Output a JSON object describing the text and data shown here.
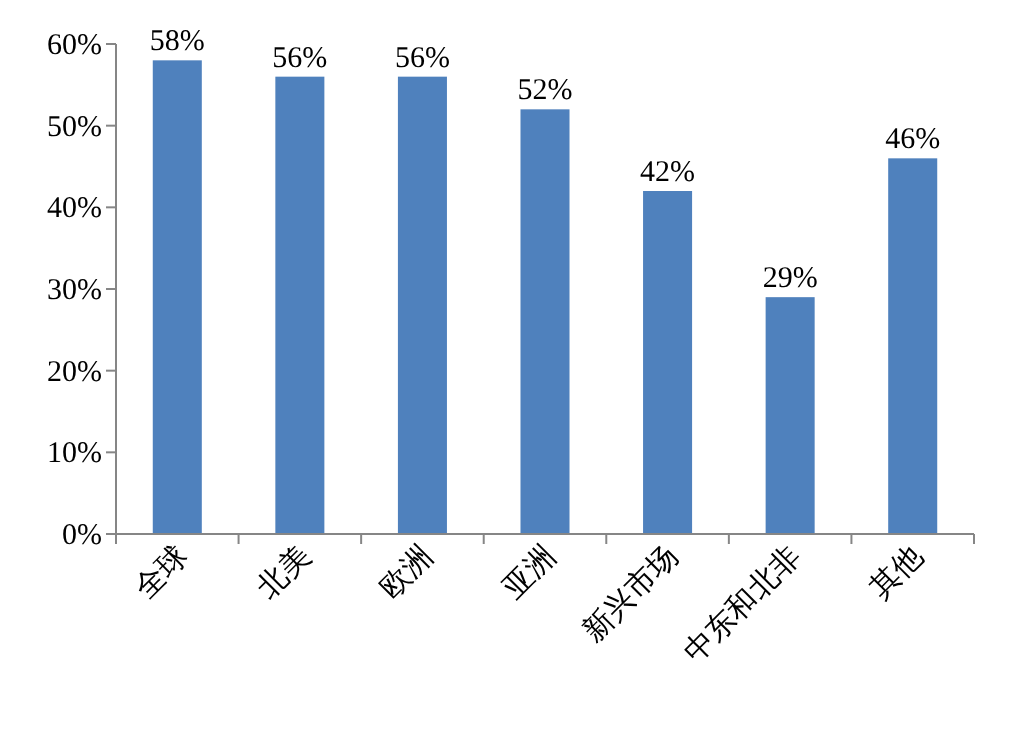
{
  "chart_data": {
    "type": "bar",
    "categories": [
      "全球",
      "北美",
      "欧洲",
      "亚洲",
      "新兴市场",
      "中东和北非",
      "其他"
    ],
    "values": [
      58,
      56,
      56,
      52,
      42,
      29,
      46
    ],
    "value_labels": [
      "58%",
      "56%",
      "56%",
      "52%",
      "42%",
      "29%",
      "46%"
    ],
    "color": "#4f81bd",
    "ylim": [
      0,
      60
    ],
    "yticks": [
      {
        "value": 0,
        "label": "0%"
      },
      {
        "value": 10,
        "label": "10%"
      },
      {
        "value": 20,
        "label": "20%"
      },
      {
        "value": 30,
        "label": "30%"
      },
      {
        "value": 40,
        "label": "40%"
      },
      {
        "value": 50,
        "label": "50%"
      },
      {
        "value": 60,
        "label": "60%"
      }
    ],
    "grid": false
  }
}
